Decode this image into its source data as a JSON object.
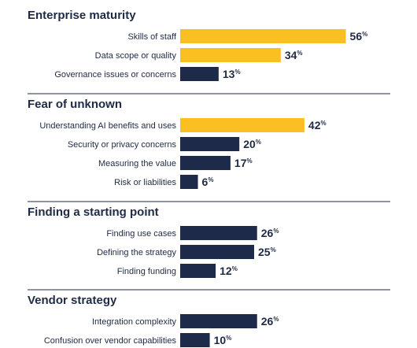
{
  "colors": {
    "highlight": "#fbbf24",
    "default": "#1e2a4a",
    "text": "#1f2a44"
  },
  "chart_data": {
    "type": "bar",
    "orientation": "horizontal",
    "unit": "%",
    "xlim": [
      0,
      100
    ],
    "grid": false,
    "legend": "none",
    "groups": [
      {
        "title": "Enterprise maturity",
        "categories": [
          "Skills of staff",
          "Data scope or quality",
          "Governance issues or concerns"
        ],
        "values": [
          56,
          34,
          13
        ],
        "highlight": [
          true,
          true,
          false
        ]
      },
      {
        "title": "Fear of unknown",
        "categories": [
          "Understanding AI benefits and uses",
          "Security or privacy concerns",
          "Measuring the value",
          "Risk or liabilities"
        ],
        "values": [
          42,
          20,
          17,
          6
        ],
        "highlight": [
          true,
          false,
          false,
          false
        ]
      },
      {
        "title": "Finding a starting point",
        "categories": [
          "Finding use cases",
          "Defining the strategy",
          "Finding funding"
        ],
        "values": [
          26,
          25,
          12
        ],
        "highlight": [
          false,
          false,
          false
        ]
      },
      {
        "title": "Vendor strategy",
        "categories": [
          "Integration complexity",
          "Confusion over vendor capabilities"
        ],
        "values": [
          26,
          10
        ],
        "highlight": [
          false,
          false
        ]
      }
    ]
  }
}
